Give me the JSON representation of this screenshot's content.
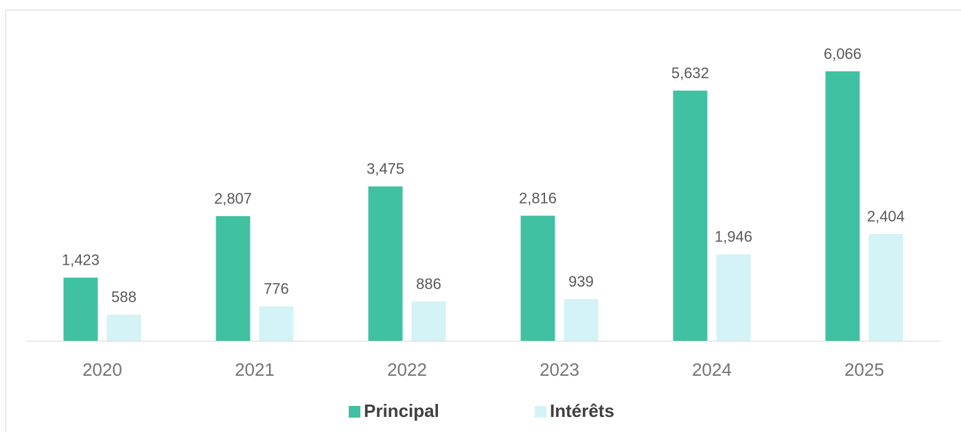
{
  "chart_data": {
    "type": "bar",
    "categories": [
      "2020",
      "2021",
      "2022",
      "2023",
      "2024",
      "2025"
    ],
    "series": [
      {
        "name": "Principal",
        "color": "#40c1a1",
        "values": [
          1423,
          2807,
          3475,
          2816,
          5632,
          6066
        ],
        "value_labels": [
          "1,423",
          "2,807",
          "3,475",
          "2,816",
          "5,632",
          "6,066"
        ]
      },
      {
        "name": "Intérêts",
        "color": "#d3f3f6",
        "values": [
          588,
          776,
          886,
          939,
          1946,
          2404
        ],
        "value_labels": [
          "588",
          "776",
          "886",
          "939",
          "1,946",
          "2,404"
        ]
      }
    ],
    "legend": "bottom"
  }
}
